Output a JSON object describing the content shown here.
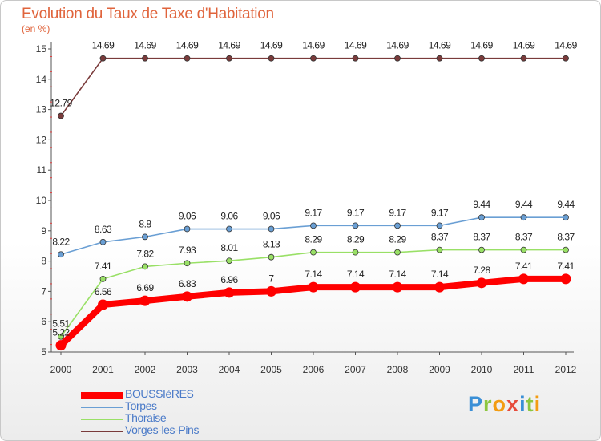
{
  "title": "Evolution du Taux de Taxe d'Habitation",
  "unit_label": "(en %)",
  "logo": {
    "text": "Proxiti",
    "letters": [
      {
        "ch": "P",
        "color": "#3a8fd6"
      },
      {
        "ch": "r",
        "color": "#8cc63f"
      },
      {
        "ch": "o",
        "color": "#f39c12"
      },
      {
        "ch": "x",
        "color": "#e74c3c"
      },
      {
        "ch": "i",
        "color": "#3a8fd6"
      },
      {
        "ch": "t",
        "color": "#8cc63f"
      },
      {
        "ch": "i",
        "color": "#f39c12"
      }
    ]
  },
  "chart_data": {
    "type": "line",
    "title": "Evolution du Taux de Taxe d'Habitation",
    "ylabel": "(en %)",
    "xlabel": "",
    "x": [
      "2000",
      "2001",
      "2002",
      "2003",
      "2004",
      "2005",
      "2006",
      "2007",
      "2008",
      "2009",
      "2010",
      "2011",
      "2012"
    ],
    "ylim": [
      5,
      15
    ],
    "yticks": [
      5,
      6,
      7,
      8,
      9,
      10,
      11,
      12,
      13,
      14,
      15
    ],
    "grid": false,
    "legend_position": "bottom-left",
    "series": [
      {
        "name": "BOUSSIèRES",
        "color": "#ff0000",
        "width": 8,
        "values": [
          5.22,
          6.56,
          6.69,
          6.83,
          6.96,
          7,
          7.14,
          7.14,
          7.14,
          7.14,
          7.28,
          7.41,
          7.41
        ],
        "labels": [
          "5.22",
          "6.56",
          "6.69",
          "6.83",
          "6.96",
          "7",
          "7.14",
          "7.14",
          "7.14",
          "7.14",
          "7.28",
          "7.41",
          "7.41"
        ]
      },
      {
        "name": "Torpes",
        "color": "#6a9fd4",
        "width": 1.6,
        "values": [
          8.22,
          8.63,
          8.8,
          9.06,
          9.06,
          9.06,
          9.17,
          9.17,
          9.17,
          9.17,
          9.44,
          9.44,
          9.44
        ],
        "labels": [
          "8.22",
          "8.63",
          "8.8",
          "9.06",
          "9.06",
          "9.06",
          "9.17",
          "9.17",
          "9.17",
          "9.17",
          "9.44",
          "9.44",
          "9.44"
        ]
      },
      {
        "name": "Thoraise",
        "color": "#99e066",
        "width": 1.6,
        "values": [
          5.51,
          7.41,
          7.82,
          7.93,
          8.01,
          8.13,
          8.29,
          8.29,
          8.29,
          8.37,
          8.37,
          8.37,
          8.37
        ],
        "labels": [
          "5.51",
          "7.41",
          "7.82",
          "7.93",
          "8.01",
          "8.13",
          "8.29",
          "8.29",
          "8.29",
          "8.37",
          "8.37",
          "8.37",
          "8.37"
        ]
      },
      {
        "name": "Vorges-les-Pins",
        "color": "#7a3b3b",
        "width": 1.6,
        "values": [
          12.79,
          14.69,
          14.69,
          14.69,
          14.69,
          14.69,
          14.69,
          14.69,
          14.69,
          14.69,
          14.69,
          14.69,
          14.69
        ],
        "labels": [
          "12.79",
          "14.69",
          "14.69",
          "14.69",
          "14.69",
          "14.69",
          "14.69",
          "14.69",
          "14.69",
          "14.69",
          "14.69",
          "14.69",
          "14.69"
        ]
      }
    ]
  }
}
